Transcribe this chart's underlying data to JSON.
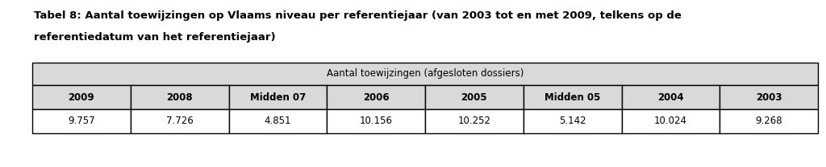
{
  "title_line1": "Tabel 8: Aantal toewijzingen op Vlaams niveau per referentiejaar (van 2003 tot en met 2009, telkens op de",
  "title_line2": "referentiedatum van het referentiejaar)",
  "header_merged": "Aantal toewijzingen (afgesloten dossiers)",
  "col_headers": [
    "2009",
    "2008",
    "Midden 07",
    "2006",
    "2005",
    "Midden 05",
    "2004",
    "2003"
  ],
  "values": [
    "9.757",
    "7.726",
    "4.851",
    "10.156",
    "10.252",
    "5.142",
    "10.024",
    "9.268"
  ],
  "bg_color": "#ffffff",
  "title_color": "#000000",
  "table_header_bg": "#d9d9d9",
  "table_row_bg": "#ffffff",
  "table_border_color": "#000000",
  "title_fontsize": 9.5,
  "table_fontsize": 8.5,
  "title_font_weight": "bold",
  "col_header_font_weight": "bold",
  "value_font_weight": "normal"
}
